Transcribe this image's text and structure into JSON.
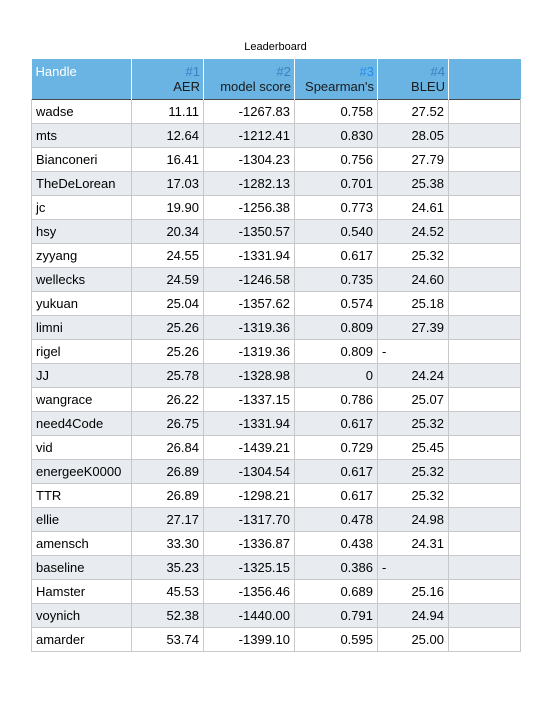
{
  "title": "Leaderboard",
  "header": {
    "handle": "Handle",
    "columns": [
      {
        "rank": "#1",
        "name": "AER"
      },
      {
        "rank": "#2",
        "name": "model score"
      },
      {
        "rank": "#3",
        "name": "Spearman's"
      },
      {
        "rank": "#4",
        "name": "BLEU"
      }
    ]
  },
  "rows": [
    {
      "handle": "wadse",
      "aer": "11.11",
      "model": "-1267.83",
      "spearman": "0.758",
      "bleu": "27.52"
    },
    {
      "handle": "mts",
      "aer": "12.64",
      "model": "-1212.41",
      "spearman": "0.830",
      "bleu": "28.05"
    },
    {
      "handle": "Bianconeri",
      "aer": "16.41",
      "model": "-1304.23",
      "spearman": "0.756",
      "bleu": "27.79"
    },
    {
      "handle": "TheDeLorean",
      "aer": "17.03",
      "model": "-1282.13",
      "spearman": "0.701",
      "bleu": "25.38"
    },
    {
      "handle": "jc",
      "aer": "19.90",
      "model": "-1256.38",
      "spearman": "0.773",
      "bleu": "24.61"
    },
    {
      "handle": "hsy",
      "aer": "20.34",
      "model": "-1350.57",
      "spearman": "0.540",
      "bleu": "24.52"
    },
    {
      "handle": "zyyang",
      "aer": "24.55",
      "model": "-1331.94",
      "spearman": "0.617",
      "bleu": "25.32"
    },
    {
      "handle": "wellecks",
      "aer": "24.59",
      "model": "-1246.58",
      "spearman": "0.735",
      "bleu": "24.60"
    },
    {
      "handle": "yukuan",
      "aer": "25.04",
      "model": "-1357.62",
      "spearman": "0.574",
      "bleu": "25.18"
    },
    {
      "handle": "limni",
      "aer": "25.26",
      "model": "-1319.36",
      "spearman": "0.809",
      "bleu": "27.39"
    },
    {
      "handle": "rigel",
      "aer": "25.26",
      "model": "-1319.36",
      "spearman": "0.809",
      "bleu": "-"
    },
    {
      "handle": "JJ",
      "aer": "25.78",
      "model": "-1328.98",
      "spearman": "0",
      "bleu": "24.24"
    },
    {
      "handle": "wangrace",
      "aer": "26.22",
      "model": "-1337.15",
      "spearman": "0.786",
      "bleu": "25.07"
    },
    {
      "handle": "need4Code",
      "aer": "26.75",
      "model": "-1331.94",
      "spearman": "0.617",
      "bleu": "25.32"
    },
    {
      "handle": "vid",
      "aer": "26.84",
      "model": "-1439.21",
      "spearman": "0.729",
      "bleu": "25.45"
    },
    {
      "handle": "energeeK0000",
      "aer": "26.89",
      "model": "-1304.54",
      "spearman": "0.617",
      "bleu": "25.32"
    },
    {
      "handle": "TTR",
      "aer": "26.89",
      "model": "-1298.21",
      "spearman": "0.617",
      "bleu": "25.32"
    },
    {
      "handle": "ellie",
      "aer": "27.17",
      "model": "-1317.70",
      "spearman": "0.478",
      "bleu": "24.98"
    },
    {
      "handle": "amensch",
      "aer": "33.30",
      "model": "-1336.87",
      "spearman": "0.438",
      "bleu": "24.31"
    },
    {
      "handle": "baseline",
      "aer": "35.23",
      "model": "-1325.15",
      "spearman": "0.386",
      "bleu": "-"
    },
    {
      "handle": "Hamster",
      "aer": "45.53",
      "model": "-1356.46",
      "spearman": "0.689",
      "bleu": "25.16"
    },
    {
      "handle": "voynich",
      "aer": "52.38",
      "model": "-1440.00",
      "spearman": "0.791",
      "bleu": "24.94"
    },
    {
      "handle": "amarder",
      "aer": "53.74",
      "model": "-1399.10",
      "spearman": "0.595",
      "bleu": "25.00"
    }
  ],
  "colors": {
    "header_bg": "#69b4e3",
    "rank_text": "#3a7fc3",
    "stripe": "#e8ecf0"
  }
}
